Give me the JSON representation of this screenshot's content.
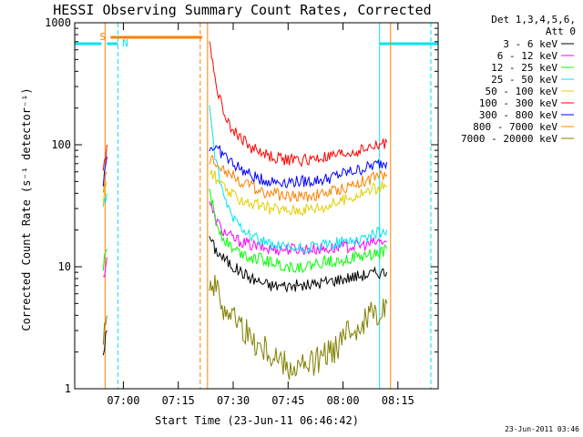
{
  "chart_data": {
    "type": "line",
    "title": "HESSI Observing Summary Count Rates, Corrected",
    "xlabel": "Start Time (23-Jun-11 06:46:42)",
    "ylabel": "Corrected Count Rate (s⁻¹ detector⁻¹)",
    "yscale": "log",
    "ylim": [
      1,
      1000
    ],
    "xlim": [
      "06:46:42",
      "08:26:00"
    ],
    "x_tick_labels": [
      "07:00",
      "07:15",
      "07:30",
      "07:45",
      "08:00",
      "08:15"
    ],
    "y_tick_labels": [
      "1",
      "10",
      "100",
      "1000"
    ],
    "legend_header": [
      "Det 1,3,4,5,6,",
      "Att 0"
    ],
    "legend_position": "right, outside plot",
    "timestamp": "23-Jun-2011 03:46",
    "flags": [
      {
        "label": "S",
        "color": "#ff8000"
      },
      {
        "label": "N",
        "color": "#00e5ee"
      }
    ],
    "series": [
      {
        "name": "3 - 6 keV",
        "color": "#000000",
        "x": [
          "06:54:30",
          "06:55:30",
          "07:23:30",
          "07:25",
          "07:27",
          "07:30",
          "07:35",
          "07:40",
          "07:45",
          "07:50",
          "07:55",
          "08:00",
          "08:05",
          "08:10",
          "08:12"
        ],
        "y": [
          2,
          3,
          18,
          14,
          12,
          10,
          8,
          7,
          7,
          7,
          7.5,
          8,
          8.5,
          9,
          9
        ]
      },
      {
        "name": "6 - 12 keV",
        "color": "#ff00ff",
        "x": [
          "06:54:30",
          "06:55:30",
          "07:23:30",
          "07:25",
          "07:27",
          "07:30",
          "07:35",
          "07:40",
          "07:45",
          "07:50",
          "07:55",
          "08:00",
          "08:05",
          "08:10",
          "08:12"
        ],
        "y": [
          8,
          12,
          35,
          25,
          20,
          17,
          15,
          14,
          14,
          14,
          14,
          14.5,
          15,
          16,
          16
        ]
      },
      {
        "name": "12 - 25 keV",
        "color": "#00ff00",
        "x": [
          "06:54:30",
          "06:55:30",
          "07:23:30",
          "07:25",
          "07:27",
          "07:30",
          "07:35",
          "07:40",
          "07:45",
          "07:50",
          "07:55",
          "08:00",
          "08:05",
          "08:10",
          "08:12"
        ],
        "y": [
          10,
          14,
          45,
          25,
          18,
          14,
          12,
          11,
          10,
          10,
          11,
          11.5,
          12,
          13,
          14
        ]
      },
      {
        "name": "25 - 50 keV",
        "color": "#00e5ee",
        "x": [
          "06:54:30",
          "06:55:30",
          "07:23:30",
          "07:25",
          "07:27",
          "07:30",
          "07:35",
          "07:40",
          "07:45",
          "07:50",
          "07:55",
          "08:00",
          "08:05",
          "08:10",
          "08:12"
        ],
        "y": [
          30,
          40,
          220,
          80,
          40,
          25,
          18,
          15,
          14,
          14,
          15,
          16,
          17,
          19,
          20
        ]
      },
      {
        "name": "50 - 100 keV",
        "color": "#e0d000",
        "x": [
          "06:54:30",
          "06:55:30",
          "07:23:30",
          "07:25",
          "07:27",
          "07:30",
          "07:35",
          "07:40",
          "07:45",
          "07:50",
          "07:55",
          "08:00",
          "08:05",
          "08:10",
          "08:12"
        ],
        "y": [
          35,
          50,
          60,
          55,
          45,
          38,
          33,
          30,
          29,
          30,
          31,
          35,
          40,
          45,
          46
        ]
      },
      {
        "name": "100 - 300 keV",
        "color": "#ff0000",
        "x": [
          "06:54:30",
          "06:55:30",
          "07:23:30",
          "07:25",
          "07:27",
          "07:30",
          "07:35",
          "07:40",
          "07:45",
          "07:50",
          "07:55",
          "08:00",
          "08:05",
          "08:10",
          "08:12"
        ],
        "y": [
          60,
          100,
          750,
          350,
          200,
          130,
          95,
          80,
          75,
          75,
          78,
          83,
          90,
          100,
          105
        ]
      },
      {
        "name": "300 - 800 keV",
        "color": "#0000ff",
        "x": [
          "06:54:30",
          "06:55:30",
          "07:23:30",
          "07:25",
          "07:27",
          "07:30",
          "07:35",
          "07:40",
          "07:45",
          "07:50",
          "07:55",
          "08:00",
          "08:05",
          "08:10",
          "08:12"
        ],
        "y": [
          50,
          80,
          95,
          95,
          85,
          70,
          55,
          50,
          50,
          50,
          52,
          58,
          63,
          70,
          72
        ]
      },
      {
        "name": "800 - 7000 keV",
        "color": "#ff8000",
        "x": [
          "06:54:30",
          "06:55:30",
          "07:23:30",
          "07:25",
          "07:27",
          "07:30",
          "07:35",
          "07:40",
          "07:45",
          "07:50",
          "07:55",
          "08:00",
          "08:05",
          "08:10",
          "08:12"
        ],
        "y": [
          40,
          60,
          75,
          75,
          65,
          55,
          45,
          40,
          38,
          38,
          40,
          44,
          50,
          55,
          57
        ]
      },
      {
        "name": "7000 - 20000 keV",
        "color": "#808000",
        "x": [
          "06:54:30",
          "06:55:30",
          "07:23:30",
          "07:25",
          "07:27",
          "07:30",
          "07:35",
          "07:40",
          "07:45",
          "07:50",
          "07:55",
          "08:00",
          "08:05",
          "08:10",
          "08:12"
        ],
        "y": [
          3,
          4,
          8,
          7,
          5,
          4,
          2.5,
          2,
          1.5,
          1.5,
          1.8,
          2.5,
          3.5,
          4.5,
          5
        ]
      }
    ]
  }
}
